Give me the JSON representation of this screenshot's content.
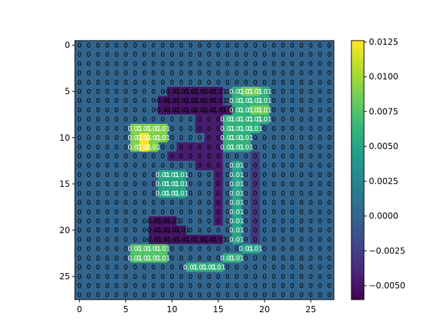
{
  "chart_data": {
    "type": "heatmap",
    "title": "",
    "xlabel": "",
    "ylabel": "",
    "rows": 28,
    "cols": 28,
    "cell_label_rounding": "2 significant digits in ±0.0x form; most cells print 0",
    "x_ticks": [
      0,
      5,
      10,
      15,
      20,
      25
    ],
    "y_ticks": [
      0,
      5,
      10,
      15,
      20,
      25
    ],
    "colorbar": {
      "colormap": "viridis",
      "vmin": -0.006,
      "vmax": 0.0126,
      "ticks": [
        0.0125,
        0.01,
        0.0075,
        0.005,
        0.0025,
        0.0,
        -0.0025,
        -0.005
      ],
      "tick_labels": [
        "0.0125",
        "0.0100",
        "0.0075",
        "0.0050",
        "0.0025",
        "0.0000",
        "−0.0025",
        "−0.0050"
      ]
    },
    "background_value": 0.0,
    "regions": [
      {
        "name": "upper-right blob",
        "value": 0.006,
        "cells": [
          [
            5,
            17
          ],
          [
            5,
            18
          ],
          [
            5,
            19
          ],
          [
            5,
            20
          ],
          [
            6,
            17
          ],
          [
            6,
            18
          ],
          [
            6,
            19
          ],
          [
            6,
            20
          ],
          [
            7,
            17
          ],
          [
            7,
            18
          ],
          [
            7,
            19
          ],
          [
            7,
            20
          ],
          [
            8,
            16
          ],
          [
            8,
            17
          ],
          [
            8,
            18
          ],
          [
            8,
            19
          ],
          [
            8,
            20
          ],
          [
            9,
            16
          ],
          [
            9,
            17
          ],
          [
            9,
            18
          ],
          [
            9,
            19
          ],
          [
            10,
            16
          ],
          [
            10,
            17
          ],
          [
            10,
            18
          ],
          [
            11,
            16
          ],
          [
            11,
            17
          ],
          [
            11,
            18
          ]
        ]
      },
      {
        "name": "upper-right peaks",
        "value": 0.0085,
        "cells": [
          [
            5,
            18
          ],
          [
            5,
            19
          ],
          [
            7,
            19
          ],
          [
            7,
            20
          ]
        ]
      },
      {
        "name": "upper negative band",
        "value": -0.005,
        "cells": [
          [
            5,
            10
          ],
          [
            5,
            11
          ],
          [
            5,
            12
          ],
          [
            5,
            13
          ],
          [
            5,
            14
          ],
          [
            5,
            15
          ],
          [
            6,
            9
          ],
          [
            6,
            10
          ],
          [
            6,
            11
          ],
          [
            6,
            12
          ],
          [
            6,
            13
          ],
          [
            6,
            14
          ],
          [
            6,
            15
          ],
          [
            7,
            9
          ],
          [
            7,
            10
          ],
          [
            7,
            11
          ],
          [
            7,
            12
          ],
          [
            7,
            13
          ],
          [
            7,
            14
          ],
          [
            7,
            15
          ],
          [
            7,
            16
          ]
        ]
      },
      {
        "name": "center dark",
        "value": -0.0045,
        "cells": [
          [
            8,
            13
          ],
          [
            8,
            14
          ],
          [
            8,
            15
          ],
          [
            9,
            13
          ],
          [
            9,
            14
          ],
          [
            9,
            15
          ],
          [
            10,
            14
          ],
          [
            10,
            15
          ],
          [
            11,
            11
          ],
          [
            11,
            12
          ],
          [
            11,
            13
          ],
          [
            11,
            14
          ],
          [
            11,
            15
          ],
          [
            12,
            10
          ],
          [
            12,
            11
          ],
          [
            12,
            12
          ],
          [
            12,
            13
          ],
          [
            12,
            14
          ],
          [
            12,
            15
          ],
          [
            13,
            13
          ],
          [
            13,
            14
          ],
          [
            13,
            15
          ],
          [
            14,
            15
          ],
          [
            15,
            15
          ],
          [
            16,
            15
          ],
          [
            17,
            15
          ],
          [
            18,
            15
          ],
          [
            19,
            15
          ]
        ]
      },
      {
        "name": "left bright blob",
        "value": 0.009,
        "cells": [
          [
            9,
            6
          ],
          [
            9,
            7
          ],
          [
            9,
            8
          ],
          [
            9,
            9
          ],
          [
            10,
            6
          ],
          [
            10,
            7
          ],
          [
            10,
            8
          ],
          [
            10,
            9
          ],
          [
            11,
            6
          ],
          [
            11,
            7
          ],
          [
            11,
            8
          ]
        ]
      },
      {
        "name": "left peak",
        "value": 0.0126,
        "cells": [
          [
            10,
            7
          ],
          [
            11,
            7
          ]
        ]
      },
      {
        "name": "middle green",
        "value": 0.005,
        "cells": [
          [
            14,
            9
          ],
          [
            14,
            10
          ],
          [
            14,
            11
          ],
          [
            15,
            9
          ],
          [
            15,
            10
          ],
          [
            15,
            11
          ],
          [
            16,
            9
          ],
          [
            16,
            10
          ],
          [
            16,
            11
          ],
          [
            13,
            17
          ],
          [
            14,
            17
          ],
          [
            15,
            17
          ],
          [
            16,
            17
          ],
          [
            17,
            17
          ],
          [
            18,
            17
          ],
          [
            19,
            17
          ],
          [
            20,
            17
          ],
          [
            21,
            17
          ],
          [
            22,
            18
          ],
          [
            22,
            19
          ]
        ]
      },
      {
        "name": "right column dark",
        "value": -0.003,
        "cells": [
          [
            12,
            19
          ],
          [
            13,
            19
          ],
          [
            14,
            19
          ],
          [
            15,
            19
          ],
          [
            16,
            19
          ],
          [
            17,
            19
          ],
          [
            18,
            19
          ],
          [
            19,
            19
          ],
          [
            20,
            19
          ],
          [
            21,
            19
          ]
        ]
      },
      {
        "name": "lower negative band",
        "value": -0.005,
        "cells": [
          [
            19,
            8
          ],
          [
            19,
            9
          ],
          [
            19,
            10
          ],
          [
            20,
            8
          ],
          [
            20,
            9
          ],
          [
            20,
            10
          ],
          [
            20,
            11
          ],
          [
            21,
            8
          ],
          [
            21,
            9
          ],
          [
            21,
            10
          ],
          [
            21,
            11
          ],
          [
            21,
            12
          ],
          [
            21,
            13
          ],
          [
            21,
            14
          ],
          [
            21,
            15
          ]
        ]
      },
      {
        "name": "lower left blob",
        "value": 0.0075,
        "cells": [
          [
            22,
            6
          ],
          [
            22,
            7
          ],
          [
            22,
            8
          ],
          [
            22,
            9
          ],
          [
            23,
            6
          ],
          [
            23,
            7
          ],
          [
            23,
            8
          ],
          [
            23,
            9
          ]
        ]
      },
      {
        "name": "lower middle blob",
        "value": 0.006,
        "cells": [
          [
            23,
            16
          ],
          [
            23,
            17
          ],
          [
            24,
            12
          ],
          [
            24,
            13
          ],
          [
            24,
            14
          ],
          [
            24,
            15
          ]
        ]
      }
    ]
  }
}
